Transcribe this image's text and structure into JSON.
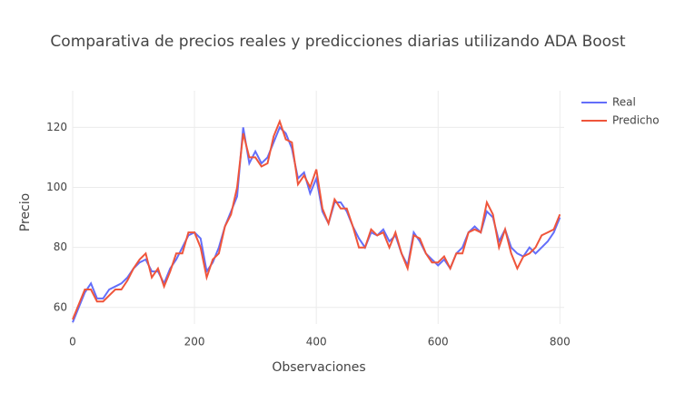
{
  "chart_data": {
    "type": "line",
    "title": "Comparativa de precios reales y predicciones diarias utilizando ADA Boost",
    "x_label": "Observaciones",
    "y_label": "Precio",
    "x": [
      0,
      10,
      20,
      30,
      40,
      50,
      60,
      70,
      80,
      90,
      100,
      110,
      120,
      130,
      140,
      150,
      160,
      170,
      180,
      190,
      200,
      210,
      220,
      230,
      240,
      250,
      260,
      270,
      280,
      290,
      300,
      310,
      320,
      330,
      340,
      350,
      360,
      370,
      380,
      390,
      400,
      410,
      420,
      430,
      440,
      450,
      460,
      470,
      480,
      490,
      500,
      510,
      520,
      530,
      540,
      550,
      560,
      570,
      580,
      590,
      600,
      610,
      620,
      630,
      640,
      650,
      660,
      670,
      680,
      690,
      700,
      710,
      720,
      730,
      740,
      750,
      760,
      770,
      780,
      790,
      800
    ],
    "series": [
      {
        "name": "Real",
        "color": "#636efa",
        "values": [
          55,
          60,
          65,
          68,
          63,
          63,
          66,
          67,
          68,
          70,
          73,
          75,
          76,
          72,
          72,
          68,
          73,
          76,
          80,
          84,
          85,
          83,
          72,
          75,
          80,
          87,
          92,
          97,
          120,
          108,
          112,
          108,
          110,
          115,
          120,
          118,
          113,
          103,
          105,
          98,
          103,
          92,
          88,
          95,
          95,
          92,
          87,
          83,
          80,
          85,
          84,
          86,
          82,
          84,
          78,
          74,
          85,
          82,
          78,
          76,
          74,
          76,
          73,
          78,
          80,
          85,
          87,
          85,
          92,
          90,
          82,
          86,
          80,
          78,
          77,
          80,
          78,
          80,
          82,
          85,
          90
        ]
      },
      {
        "name": "Predicho",
        "color": "#ef553b",
        "values": [
          56,
          61,
          66,
          66,
          62,
          62,
          64,
          66,
          66,
          69,
          73,
          76,
          78,
          70,
          73,
          67,
          72,
          78,
          78,
          85,
          85,
          80,
          70,
          76,
          78,
          87,
          91,
          100,
          118,
          110,
          110,
          107,
          108,
          117,
          122,
          116,
          115,
          101,
          104,
          100,
          106,
          93,
          88,
          96,
          93,
          93,
          87,
          80,
          80,
          86,
          84,
          85,
          80,
          85,
          78,
          73,
          84,
          83,
          78,
          75,
          75,
          77,
          73,
          78,
          78,
          85,
          86,
          85,
          95,
          91,
          80,
          86,
          78,
          73,
          77,
          78,
          80,
          84,
          85,
          86,
          91
        ]
      }
    ],
    "xlim": [
      0,
      807
    ],
    "ylim": [
      54.5,
      132.2
    ],
    "xticks": [
      0,
      200,
      400,
      600,
      800
    ],
    "yticks": [
      60,
      80,
      100,
      120
    ],
    "grid": true,
    "legend": "top-right"
  }
}
